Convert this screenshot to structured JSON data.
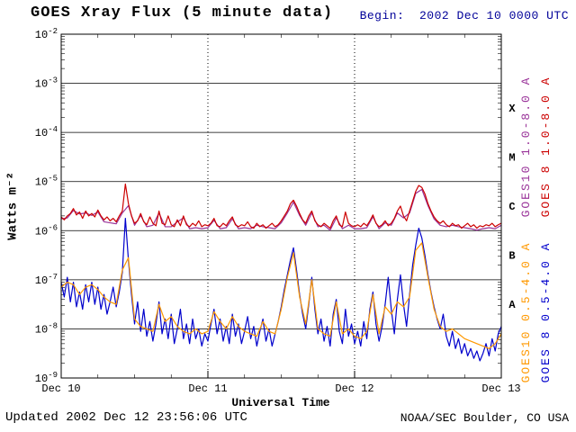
{
  "header": {
    "begin": "Begin:  2002 Dec 10 0000 UTC"
  },
  "footer": {
    "updated": "Updated 2002 Dec 12 23:56:06 UTC",
    "credit": "NOAA/SEC Boulder, CO USA"
  },
  "colors": {
    "background": "#ffffff",
    "axis": "#000000",
    "begin_text": "#000099",
    "goes10_long": "#993399",
    "goes8_long": "#cc0000",
    "goes10_short": "#ff9900",
    "goes8_short": "#0000cc"
  },
  "chart_data": {
    "type": "line",
    "title": "GOES Xray Flux (5 minute data)",
    "x_axis": {
      "label": "Universal Time",
      "range_hours": [
        0,
        72
      ],
      "tick_hours": [
        0,
        24,
        48,
        72
      ],
      "tick_labels": [
        "Dec 10",
        "Dec 11",
        "Dec 12",
        "Dec 13"
      ],
      "minor_tick_hours": 6,
      "day_gridlines_hours": [
        24,
        48
      ]
    },
    "y_axis": {
      "label": "Watts m⁻²",
      "scale": "log",
      "base": 10,
      "exponent_ticks": [
        -2,
        -3,
        -4,
        -5,
        -6,
        -7,
        -8,
        -9
      ]
    },
    "flux_classes": [
      {
        "letter": "X",
        "log_center": -3.5
      },
      {
        "letter": "M",
        "log_center": -4.5
      },
      {
        "letter": "C",
        "log_center": -5.5
      },
      {
        "letter": "B",
        "log_center": -6.5
      },
      {
        "letter": "A",
        "log_center": -7.5
      }
    ],
    "series": [
      {
        "name": "GOES10 1.0-8.0 A",
        "color": "#993399",
        "t0": 0,
        "dt": 1.0,
        "log_flux": [
          -5.76,
          -5.74,
          -5.59,
          -5.66,
          -5.64,
          -5.69,
          -5.62,
          -5.82,
          -5.84,
          -5.86,
          -5.64,
          -5.49,
          -5.89,
          -5.69,
          -5.92,
          -5.89,
          -5.64,
          -5.92,
          -5.92,
          -5.82,
          -5.74,
          -5.96,
          -5.94,
          -5.96,
          -5.94,
          -5.79,
          -5.96,
          -5.94,
          -5.76,
          -5.96,
          -5.94,
          -5.96,
          -5.89,
          -5.92,
          -5.94,
          -5.96,
          -5.84,
          -5.64,
          -5.42,
          -5.69,
          -5.89,
          -5.64,
          -5.92,
          -5.89,
          -5.99,
          -5.74,
          -5.96,
          -5.89,
          -5.96,
          -5.96,
          -5.94,
          -5.72,
          -5.96,
          -5.84,
          -5.89,
          -5.64,
          -5.74,
          -5.64,
          -5.24,
          -5.16,
          -5.49,
          -5.76,
          -5.89,
          -5.92,
          -5.89,
          -5.92,
          -5.94,
          -5.96,
          -5.99,
          -5.96,
          -5.94,
          -5.96,
          -5.89
        ]
      },
      {
        "name": "GOES 8 1.0-8.0 A",
        "color": "#cc0000",
        "t0": 0,
        "dt": 0.5,
        "log_flux": [
          -5.72,
          -5.78,
          -5.7,
          -5.65,
          -5.55,
          -5.68,
          -5.62,
          -5.75,
          -5.6,
          -5.7,
          -5.65,
          -5.72,
          -5.58,
          -5.7,
          -5.78,
          -5.72,
          -5.8,
          -5.75,
          -5.82,
          -5.7,
          -5.6,
          -5.05,
          -5.45,
          -5.7,
          -5.85,
          -5.8,
          -5.65,
          -5.82,
          -5.88,
          -5.72,
          -5.85,
          -5.9,
          -5.6,
          -5.85,
          -5.88,
          -5.7,
          -5.88,
          -5.92,
          -5.78,
          -5.9,
          -5.7,
          -5.88,
          -5.92,
          -5.85,
          -5.9,
          -5.8,
          -5.92,
          -5.88,
          -5.9,
          -5.85,
          -5.75,
          -5.9,
          -5.92,
          -5.85,
          -5.9,
          -5.8,
          -5.72,
          -5.88,
          -5.92,
          -5.88,
          -5.9,
          -5.82,
          -5.92,
          -5.95,
          -5.85,
          -5.92,
          -5.88,
          -5.95,
          -5.9,
          -5.85,
          -5.92,
          -5.88,
          -5.8,
          -5.7,
          -5.6,
          -5.45,
          -5.38,
          -5.5,
          -5.65,
          -5.78,
          -5.85,
          -5.7,
          -5.6,
          -5.8,
          -5.88,
          -5.92,
          -5.85,
          -5.9,
          -5.95,
          -5.8,
          -5.7,
          -5.88,
          -5.92,
          -5.62,
          -5.85,
          -5.9,
          -5.92,
          -5.88,
          -5.92,
          -5.85,
          -5.9,
          -5.8,
          -5.68,
          -5.85,
          -5.92,
          -5.88,
          -5.8,
          -5.9,
          -5.85,
          -5.75,
          -5.6,
          -5.5,
          -5.7,
          -5.8,
          -5.6,
          -5.4,
          -5.2,
          -5.08,
          -5.12,
          -5.25,
          -5.45,
          -5.6,
          -5.72,
          -5.8,
          -5.85,
          -5.8,
          -5.88,
          -5.92,
          -5.85,
          -5.9,
          -5.88,
          -5.95,
          -5.9,
          -5.85,
          -5.92,
          -5.88,
          -5.95,
          -5.9,
          -5.92,
          -5.88,
          -5.9,
          -5.85,
          -5.92,
          -5.88,
          -5.85
        ]
      },
      {
        "name": "GOES 8 0.5-4.0 A",
        "color": "#0000cc",
        "t0": 0,
        "dt": 0.5,
        "log_flux": [
          -7.05,
          -7.35,
          -6.95,
          -7.45,
          -7.05,
          -7.55,
          -7.25,
          -7.6,
          -7.1,
          -7.45,
          -7.05,
          -7.5,
          -7.15,
          -7.6,
          -7.3,
          -7.7,
          -7.45,
          -7.15,
          -7.55,
          -7.25,
          -6.85,
          -5.75,
          -6.6,
          -7.3,
          -7.9,
          -7.45,
          -8.05,
          -7.6,
          -8.15,
          -7.85,
          -8.25,
          -7.9,
          -7.45,
          -8.1,
          -7.8,
          -8.2,
          -7.7,
          -8.3,
          -8.0,
          -7.6,
          -8.2,
          -7.9,
          -8.3,
          -7.8,
          -8.2,
          -8.0,
          -8.35,
          -8.1,
          -8.25,
          -7.9,
          -7.6,
          -8.1,
          -7.8,
          -8.25,
          -7.95,
          -8.3,
          -7.7,
          -8.15,
          -7.9,
          -8.3,
          -8.05,
          -7.75,
          -8.2,
          -7.95,
          -8.35,
          -8.05,
          -7.8,
          -8.25,
          -8.0,
          -8.35,
          -8.1,
          -7.85,
          -7.55,
          -7.2,
          -6.9,
          -6.6,
          -6.35,
          -6.8,
          -7.3,
          -7.7,
          -8.0,
          -7.5,
          -6.95,
          -7.6,
          -8.1,
          -7.8,
          -8.25,
          -7.95,
          -8.35,
          -7.7,
          -7.4,
          -8.05,
          -8.3,
          -7.6,
          -8.15,
          -7.9,
          -8.3,
          -8.05,
          -8.35,
          -7.85,
          -8.2,
          -7.6,
          -7.25,
          -7.9,
          -8.25,
          -7.95,
          -7.5,
          -6.95,
          -7.6,
          -8.1,
          -7.4,
          -6.9,
          -7.5,
          -7.95,
          -7.3,
          -6.7,
          -6.3,
          -5.95,
          -6.15,
          -6.5,
          -6.9,
          -7.25,
          -7.55,
          -7.8,
          -8.0,
          -7.7,
          -8.15,
          -8.35,
          -8.05,
          -8.4,
          -8.2,
          -8.5,
          -8.3,
          -8.55,
          -8.4,
          -8.6,
          -8.45,
          -8.65,
          -8.5,
          -8.3,
          -8.55,
          -8.2,
          -8.45,
          -8.1,
          -7.95
        ]
      },
      {
        "name": "GOES10 0.5-4.0 A",
        "color": "#ff9900",
        "t0": 0,
        "dt": 1.0,
        "log_flux": [
          -7.15,
          -7.05,
          -7.1,
          -7.3,
          -7.15,
          -7.1,
          -7.2,
          -7.35,
          -7.45,
          -7.5,
          -6.8,
          -6.55,
          -7.8,
          -7.95,
          -8.0,
          -8.05,
          -7.5,
          -7.85,
          -7.75,
          -7.95,
          -8.05,
          -8.1,
          -8.0,
          -8.1,
          -8.05,
          -7.65,
          -7.85,
          -8.0,
          -7.75,
          -7.95,
          -8.05,
          -8.1,
          -8.15,
          -7.85,
          -8.05,
          -8.1,
          -7.6,
          -6.95,
          -6.45,
          -7.35,
          -7.9,
          -7.0,
          -8.0,
          -8.1,
          -8.15,
          -7.45,
          -8.1,
          -8.0,
          -8.15,
          -8.2,
          -8.05,
          -7.3,
          -8.1,
          -7.55,
          -7.7,
          -7.45,
          -7.55,
          -7.35,
          -6.4,
          -6.25,
          -6.95,
          -7.6,
          -7.95,
          -8.05,
          -8.0,
          -8.1,
          -8.2,
          -8.25,
          -8.3,
          -8.35,
          -8.4,
          -8.3,
          -8.1
        ]
      }
    ],
    "legend": [
      {
        "label": "GOES10 1.0-8.0 A",
        "color": "#993399",
        "column": "inner",
        "band": "upper"
      },
      {
        "label": "GOES 8 1.0-8.0 A",
        "color": "#cc0000",
        "column": "outer",
        "band": "upper"
      },
      {
        "label": "GOES10 0.5-4.0 A",
        "color": "#ff9900",
        "column": "inner",
        "band": "lower"
      },
      {
        "label": "GOES 8 0.5-4.0 A",
        "color": "#0000cc",
        "column": "outer",
        "band": "lower"
      }
    ]
  }
}
